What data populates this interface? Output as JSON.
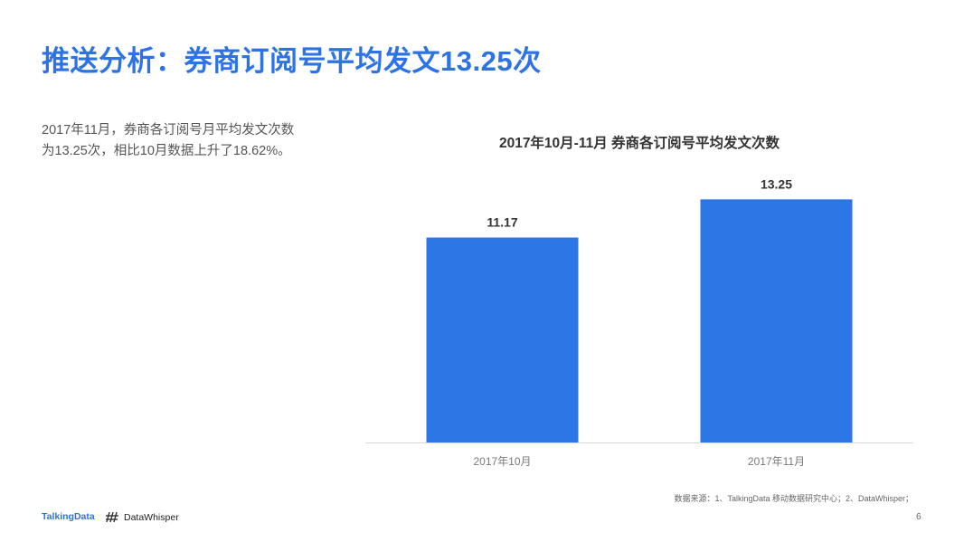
{
  "title": "推送分析：券商订阅号平均发文13.25次",
  "summary": {
    "line1": "2017年11月，券商各订阅号月平均发文次数",
    "line2": "为13.25次，相比10月数据上升了18.62%。"
  },
  "chart_data": {
    "type": "bar",
    "title": "2017年10月-11月 券商各订阅号平均发文次数",
    "categories": [
      "2017年10月",
      "2017年11月"
    ],
    "values": [
      11.17,
      13.25
    ],
    "value_labels": [
      "11.17",
      "13.25"
    ],
    "xlabel": "",
    "ylabel": "",
    "ylim": [
      0,
      14.5
    ],
    "grid": false,
    "legend": "none",
    "bar_color": "#2d76e6"
  },
  "footer": {
    "source": "数据来源：1、TalkingData 移动数据研究中心；2、DataWhisper；",
    "logo_talkingdata": "TalkingData",
    "logo_datawhisper": "DataWhisper",
    "page_number": "6"
  },
  "colors": {
    "accent": "#2d73e6",
    "bar": "#2d76e6"
  }
}
